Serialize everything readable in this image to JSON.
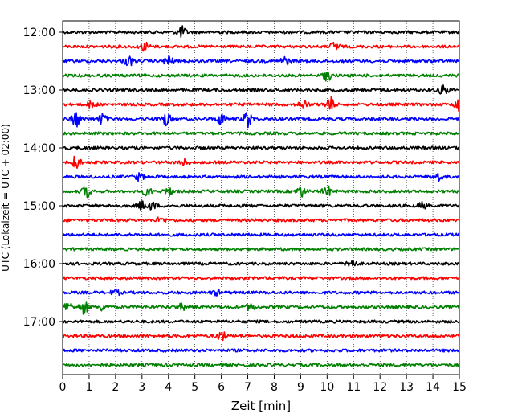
{
  "chart_data": {
    "type": "line",
    "title": "",
    "xlabel": "Zeit  [min]",
    "ylabel": "UTC (Lokalzeit = UTC + 02:00)",
    "xlim": [
      0,
      15
    ],
    "xticks": [
      0,
      1,
      2,
      3,
      4,
      5,
      6,
      7,
      8,
      9,
      10,
      11,
      12,
      13,
      14,
      15
    ],
    "ytick_labels": [
      "12:00",
      "13:00",
      "14:00",
      "15:00",
      "16:00",
      "17:00"
    ],
    "grid": {
      "x": true,
      "style": "dotted"
    },
    "trace_interval_min": 15,
    "trace_colors": [
      "#000000",
      "#ff0000",
      "#0000ff",
      "#008000"
    ],
    "traces": [
      {
        "start": "12:00",
        "color": "#000000",
        "events": [
          {
            "t": 4.5,
            "amp": 1.0
          }
        ]
      },
      {
        "start": "12:15",
        "color": "#ff0000",
        "events": [
          {
            "t": 3.1,
            "amp": 0.8
          },
          {
            "t": 10.3,
            "amp": 0.9
          }
        ]
      },
      {
        "start": "12:30",
        "color": "#0000ff",
        "events": [
          {
            "t": 2.5,
            "amp": 0.9
          },
          {
            "t": 4.0,
            "amp": 1.0
          },
          {
            "t": 8.4,
            "amp": 0.8
          }
        ]
      },
      {
        "start": "12:45",
        "color": "#008000",
        "events": [
          {
            "t": 10.0,
            "amp": 0.9
          }
        ]
      },
      {
        "start": "13:00",
        "color": "#000000",
        "events": [
          {
            "t": 14.4,
            "amp": 0.9
          }
        ]
      },
      {
        "start": "13:15",
        "color": "#ff0000",
        "events": [
          {
            "t": 1.1,
            "amp": 0.6
          },
          {
            "t": 9.1,
            "amp": 0.8
          },
          {
            "t": 10.1,
            "amp": 1.4
          },
          {
            "t": 15.0,
            "amp": 1.5
          }
        ]
      },
      {
        "start": "13:30",
        "color": "#0000ff",
        "events": [
          {
            "t": 0.5,
            "amp": 1.5
          },
          {
            "t": 1.5,
            "amp": 1.0
          },
          {
            "t": 3.9,
            "amp": 1.4
          },
          {
            "t": 6.0,
            "amp": 1.1
          },
          {
            "t": 7.0,
            "amp": 1.5
          }
        ]
      },
      {
        "start": "13:45",
        "color": "#008000",
        "events": []
      },
      {
        "start": "14:00",
        "color": "#000000",
        "events": []
      },
      {
        "start": "14:15",
        "color": "#ff0000",
        "events": [
          {
            "t": 0.5,
            "amp": 1.2
          },
          {
            "t": 4.6,
            "amp": 0.5
          }
        ]
      },
      {
        "start": "14:30",
        "color": "#0000ff",
        "events": [
          {
            "t": 2.9,
            "amp": 0.6
          },
          {
            "t": 14.2,
            "amp": 0.7
          }
        ]
      },
      {
        "start": "14:45",
        "color": "#008000",
        "events": [
          {
            "t": 0.9,
            "amp": 1.0
          },
          {
            "t": 3.2,
            "amp": 0.7
          },
          {
            "t": 4.0,
            "amp": 0.7
          },
          {
            "t": 9.0,
            "amp": 1.0
          },
          {
            "t": 10.0,
            "amp": 0.9
          }
        ]
      },
      {
        "start": "15:00",
        "color": "#000000",
        "events": [
          {
            "t": 3.0,
            "amp": 0.8
          },
          {
            "t": 3.4,
            "amp": 0.7
          },
          {
            "t": 13.6,
            "amp": 0.6
          }
        ]
      },
      {
        "start": "15:15",
        "color": "#ff0000",
        "events": [
          {
            "t": 3.7,
            "amp": 0.5
          }
        ]
      },
      {
        "start": "15:30",
        "color": "#0000ff",
        "events": []
      },
      {
        "start": "15:45",
        "color": "#008000",
        "events": []
      },
      {
        "start": "16:00",
        "color": "#000000",
        "events": [
          {
            "t": 10.9,
            "amp": 1.0
          }
        ]
      },
      {
        "start": "16:15",
        "color": "#ff0000",
        "events": []
      },
      {
        "start": "16:30",
        "color": "#0000ff",
        "events": [
          {
            "t": 2.0,
            "amp": 0.5
          },
          {
            "t": 5.8,
            "amp": 0.4
          }
        ]
      },
      {
        "start": "16:45",
        "color": "#008000",
        "events": [
          {
            "t": 0.2,
            "amp": 1.0
          },
          {
            "t": 0.8,
            "amp": 1.2
          },
          {
            "t": 1.5,
            "amp": 0.6
          },
          {
            "t": 4.5,
            "amp": 0.5
          },
          {
            "t": 7.1,
            "amp": 0.6
          }
        ]
      },
      {
        "start": "17:00",
        "color": "#000000",
        "events": []
      },
      {
        "start": "17:15",
        "color": "#ff0000",
        "events": [
          {
            "t": 6.0,
            "amp": 1.0
          }
        ]
      },
      {
        "start": "17:30",
        "color": "#0000ff",
        "events": []
      },
      {
        "start": "17:45",
        "color": "#008000",
        "events": []
      }
    ]
  }
}
